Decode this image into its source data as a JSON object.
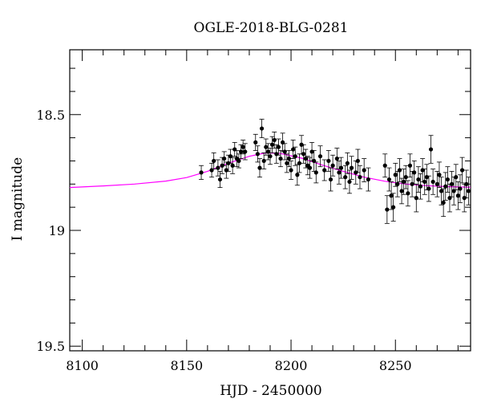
{
  "chart_data": {
    "type": "scatter",
    "title": "OGLE-2018-BLG-0281",
    "xlabel": "HJD - 2450000",
    "ylabel": "I magnitude",
    "xlim": [
      8094,
      8286
    ],
    "ylim": [
      19.52,
      18.22
    ],
    "y_inverted": true,
    "grid": false,
    "x_major_ticks": [
      8100,
      8150,
      8200,
      8250
    ],
    "x_tick_labels": [
      "8100",
      "8150",
      "8200",
      "8250"
    ],
    "y_major_ticks": [
      18.5,
      19,
      19.5
    ],
    "y_tick_labels": [
      "18.5",
      "19",
      "19.5"
    ],
    "colors": {
      "points": "#000000",
      "model": "#ff00ff"
    },
    "model_curve": {
      "x": [
        8094,
        8110,
        8125,
        8140,
        8150,
        8160,
        8170,
        8180,
        8188,
        8195,
        8205,
        8215,
        8225,
        8235,
        8245,
        8255,
        8265,
        8275,
        8286
      ],
      "y": [
        18.815,
        18.808,
        18.8,
        18.787,
        18.772,
        18.745,
        18.71,
        18.68,
        18.665,
        18.668,
        18.688,
        18.718,
        18.745,
        18.77,
        18.788,
        18.8,
        18.807,
        18.811,
        18.814
      ]
    },
    "series": [
      {
        "x": [
          8157,
          8162,
          8163,
          8165,
          8166,
          8167,
          8168,
          8169,
          8170,
          8171,
          8172,
          8173,
          8174,
          8175,
          8176,
          8177,
          8178,
          8183,
          8184,
          8185,
          8186,
          8187,
          8188,
          8189,
          8190,
          8191,
          8192,
          8193,
          8194,
          8195,
          8196,
          8197,
          8198,
          8199,
          8200,
          8201,
          8202,
          8203,
          8204,
          8205,
          8206,
          8207,
          8208,
          8209,
          8210,
          8211,
          8212,
          8214,
          8216,
          8218,
          8219,
          8220,
          8222,
          8223,
          8224,
          8226,
          8227,
          8228,
          8229,
          8231,
          8232,
          8233,
          8235,
          8237,
          8245,
          8246,
          8247,
          8248,
          8249,
          8250,
          8251,
          8252,
          8253,
          8254,
          8255,
          8256,
          8257,
          8258,
          8259,
          8260,
          8261,
          8262,
          8263,
          8264,
          8265,
          8266,
          8267,
          8268,
          8270,
          8271,
          8272,
          8273,
          8274,
          8275,
          8276,
          8277,
          8278,
          8279,
          8280,
          8281,
          8282,
          8283,
          8284,
          8285
        ],
        "y": [
          18.75,
          18.74,
          18.7,
          18.73,
          18.78,
          18.72,
          18.69,
          18.74,
          18.71,
          18.68,
          18.72,
          18.65,
          18.69,
          18.7,
          18.66,
          18.64,
          18.66,
          18.62,
          18.67,
          18.73,
          18.56,
          18.7,
          18.64,
          18.66,
          18.68,
          18.63,
          18.61,
          18.67,
          18.64,
          18.69,
          18.62,
          18.66,
          18.71,
          18.69,
          18.74,
          18.65,
          18.68,
          18.76,
          18.71,
          18.63,
          18.67,
          18.69,
          18.72,
          18.73,
          18.66,
          18.7,
          18.75,
          18.68,
          18.74,
          18.7,
          18.78,
          18.72,
          18.69,
          18.75,
          18.73,
          18.77,
          18.71,
          18.79,
          18.73,
          18.75,
          18.7,
          18.77,
          18.74,
          18.78,
          18.72,
          18.91,
          18.78,
          18.85,
          18.9,
          18.76,
          18.8,
          18.74,
          18.83,
          18.79,
          18.77,
          18.84,
          18.72,
          18.8,
          18.75,
          18.86,
          18.78,
          18.81,
          18.74,
          18.79,
          18.77,
          18.82,
          18.65,
          18.79,
          18.8,
          18.76,
          18.83,
          18.88,
          18.81,
          18.78,
          18.86,
          18.8,
          18.83,
          18.77,
          18.85,
          18.82,
          18.74,
          18.86,
          18.8,
          18.83
        ],
        "error": [
          0.03,
          0.03,
          0.035,
          0.035,
          0.035,
          0.035,
          0.03,
          0.035,
          0.035,
          0.03,
          0.035,
          0.03,
          0.035,
          0.03,
          0.03,
          0.03,
          0.035,
          0.035,
          0.035,
          0.04,
          0.04,
          0.035,
          0.035,
          0.035,
          0.035,
          0.035,
          0.035,
          0.04,
          0.035,
          0.035,
          0.04,
          0.035,
          0.04,
          0.035,
          0.04,
          0.04,
          0.04,
          0.045,
          0.04,
          0.04,
          0.04,
          0.04,
          0.04,
          0.045,
          0.04,
          0.045,
          0.045,
          0.045,
          0.045,
          0.045,
          0.05,
          0.045,
          0.045,
          0.05,
          0.045,
          0.05,
          0.045,
          0.05,
          0.05,
          0.05,
          0.05,
          0.05,
          0.05,
          0.05,
          0.05,
          0.06,
          0.05,
          0.06,
          0.06,
          0.05,
          0.055,
          0.05,
          0.055,
          0.055,
          0.05,
          0.055,
          0.05,
          0.055,
          0.05,
          0.06,
          0.055,
          0.055,
          0.05,
          0.055,
          0.055,
          0.055,
          0.06,
          0.055,
          0.055,
          0.055,
          0.06,
          0.06,
          0.06,
          0.055,
          0.06,
          0.055,
          0.06,
          0.055,
          0.06,
          0.06,
          0.055,
          0.06,
          0.06,
          0.06
        ]
      }
    ]
  }
}
